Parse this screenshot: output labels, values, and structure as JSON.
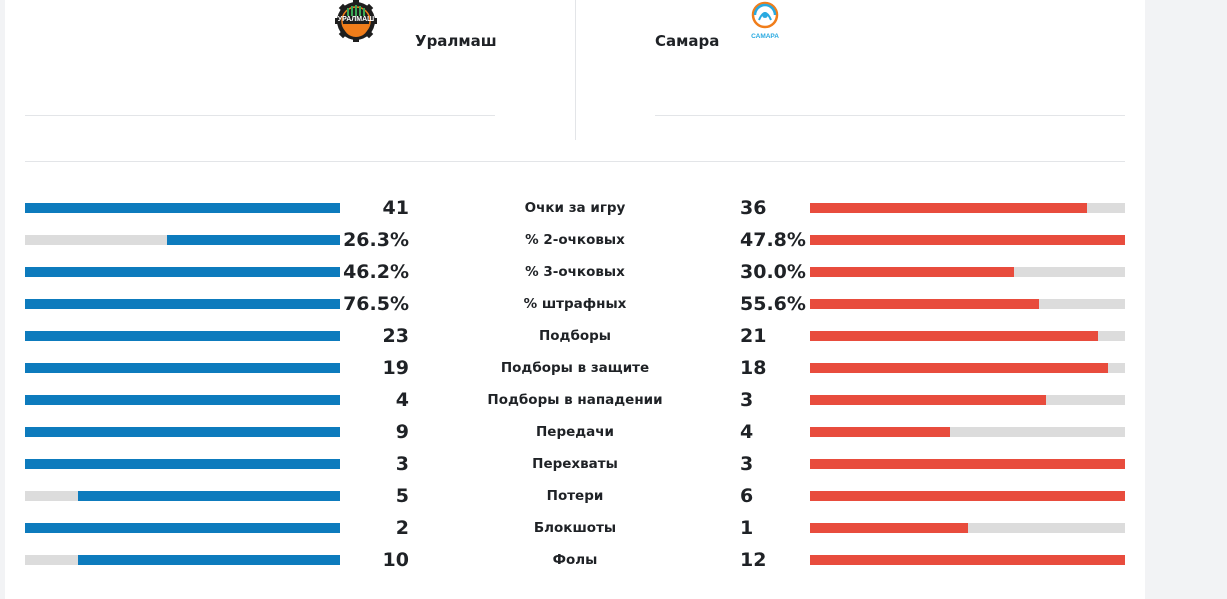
{
  "teams": {
    "home": {
      "name": "Уралмаш",
      "logo_text": "УРАЛМАШ",
      "color": "#0d7bbd"
    },
    "away": {
      "name": "Самара",
      "logo_text": "САМАРА",
      "color": "#e84c3d"
    }
  },
  "stats": [
    {
      "label": "Очки за игру",
      "home": "41",
      "away": "36",
      "home_fill": 1.0,
      "away_fill": 0.878
    },
    {
      "label": "% 2-очковых",
      "home": "26.3%",
      "away": "47.8%",
      "home_fill": 0.55,
      "away_fill": 1.0
    },
    {
      "label": "% 3-очковых",
      "home": "46.2%",
      "away": "30.0%",
      "home_fill": 1.0,
      "away_fill": 0.649
    },
    {
      "label": "% штрафных",
      "home": "76.5%",
      "away": "55.6%",
      "home_fill": 1.0,
      "away_fill": 0.727
    },
    {
      "label": "Подборы",
      "home": "23",
      "away": "21",
      "home_fill": 1.0,
      "away_fill": 0.913
    },
    {
      "label": "Подборы в защите",
      "home": "19",
      "away": "18",
      "home_fill": 1.0,
      "away_fill": 0.947
    },
    {
      "label": "Подборы в нападении",
      "home": "4",
      "away": "3",
      "home_fill": 1.0,
      "away_fill": 0.75
    },
    {
      "label": "Передачи",
      "home": "9",
      "away": "4",
      "home_fill": 1.0,
      "away_fill": 0.444
    },
    {
      "label": "Перехваты",
      "home": "3",
      "away": "3",
      "home_fill": 1.0,
      "away_fill": 1.0
    },
    {
      "label": "Потери",
      "home": "5",
      "away": "6",
      "home_fill": 0.833,
      "away_fill": 1.0
    },
    {
      "label": "Блокшоты",
      "home": "2",
      "away": "1",
      "home_fill": 1.0,
      "away_fill": 0.5
    },
    {
      "label": "Фолы",
      "home": "10",
      "away": "12",
      "home_fill": 0.833,
      "away_fill": 1.0
    }
  ]
}
